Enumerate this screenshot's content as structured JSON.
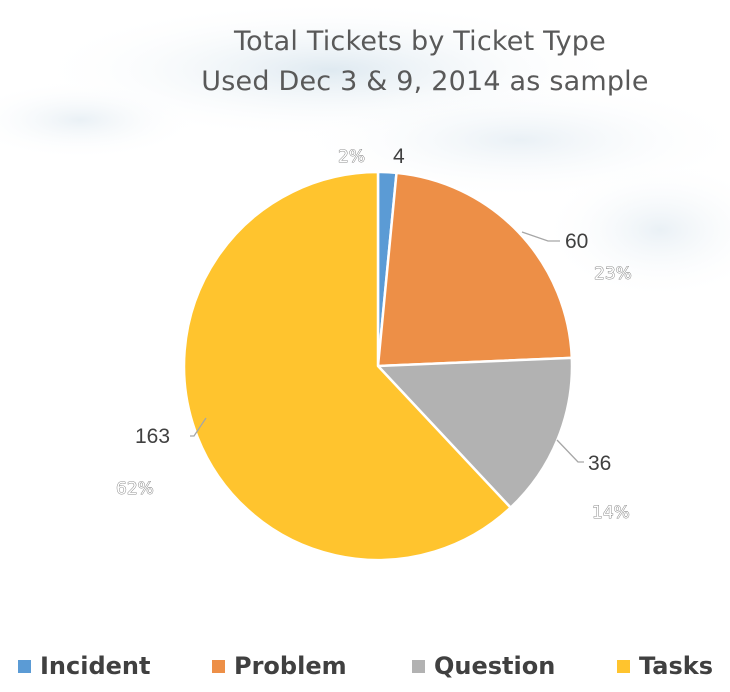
{
  "chart_data": {
    "type": "pie",
    "title": "Total Tickets by Ticket Type",
    "subtitle": "Used Dec 3 & 9, 2014 as sample",
    "categories": [
      "Incident",
      "Problem",
      "Question",
      "Tasks"
    ],
    "values": [
      4,
      60,
      36,
      163
    ],
    "percent_labels": [
      "2%",
      "23%",
      "14%",
      "62%"
    ],
    "colors": [
      "#5B9BD5",
      "#ED8F47",
      "#B2B2B2",
      "#FFC42E"
    ],
    "legend_position": "bottom",
    "start_angle_deg": 0,
    "direction": "clockwise"
  }
}
